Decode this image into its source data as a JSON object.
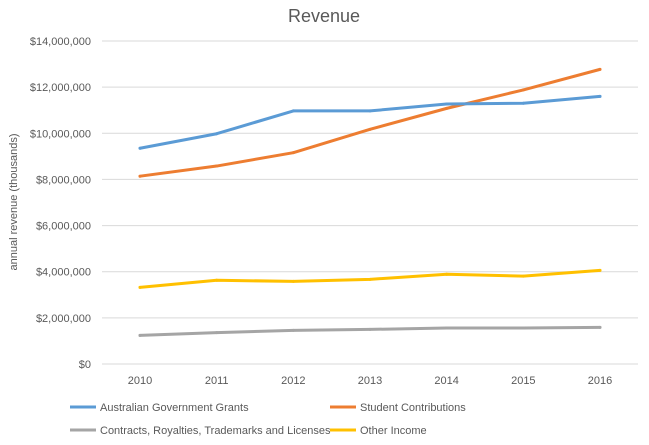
{
  "chart_data": {
    "type": "line",
    "title": "Revenue",
    "xlabel": "",
    "ylabel": "annual revenue (thousands)",
    "ylim": [
      0,
      14000000
    ],
    "yticks": [
      0,
      2000000,
      4000000,
      6000000,
      8000000,
      10000000,
      12000000,
      14000000
    ],
    "ytick_labels": [
      "$0",
      "$2,000,000",
      "$4,000,000",
      "$6,000,000",
      "$8,000,000",
      "$10,000,000",
      "$12,000,000",
      "$14,000,000"
    ],
    "categories": [
      "2010",
      "2011",
      "2012",
      "2013",
      "2014",
      "2015",
      "2016"
    ],
    "grid": true,
    "legend_placement": "bottom",
    "series": [
      {
        "name": "Australian Government Grants",
        "color": "#5B9BD5",
        "values": [
          9350000,
          9980000,
          10970000,
          10970000,
          11270000,
          11300000,
          11600000
        ]
      },
      {
        "name": "Student Contributions",
        "color": "#ED7D31",
        "values": [
          8140000,
          8580000,
          9160000,
          10170000,
          11080000,
          11880000,
          12770000
        ]
      },
      {
        "name": "Contracts, Royalties, Trademarks and Licenses",
        "color": "#A5A5A5",
        "values": [
          1240000,
          1360000,
          1460000,
          1500000,
          1560000,
          1560000,
          1590000
        ]
      },
      {
        "name": "Other Income",
        "color": "#FFC000",
        "values": [
          3320000,
          3630000,
          3580000,
          3670000,
          3890000,
          3810000,
          4060000
        ]
      }
    ]
  }
}
